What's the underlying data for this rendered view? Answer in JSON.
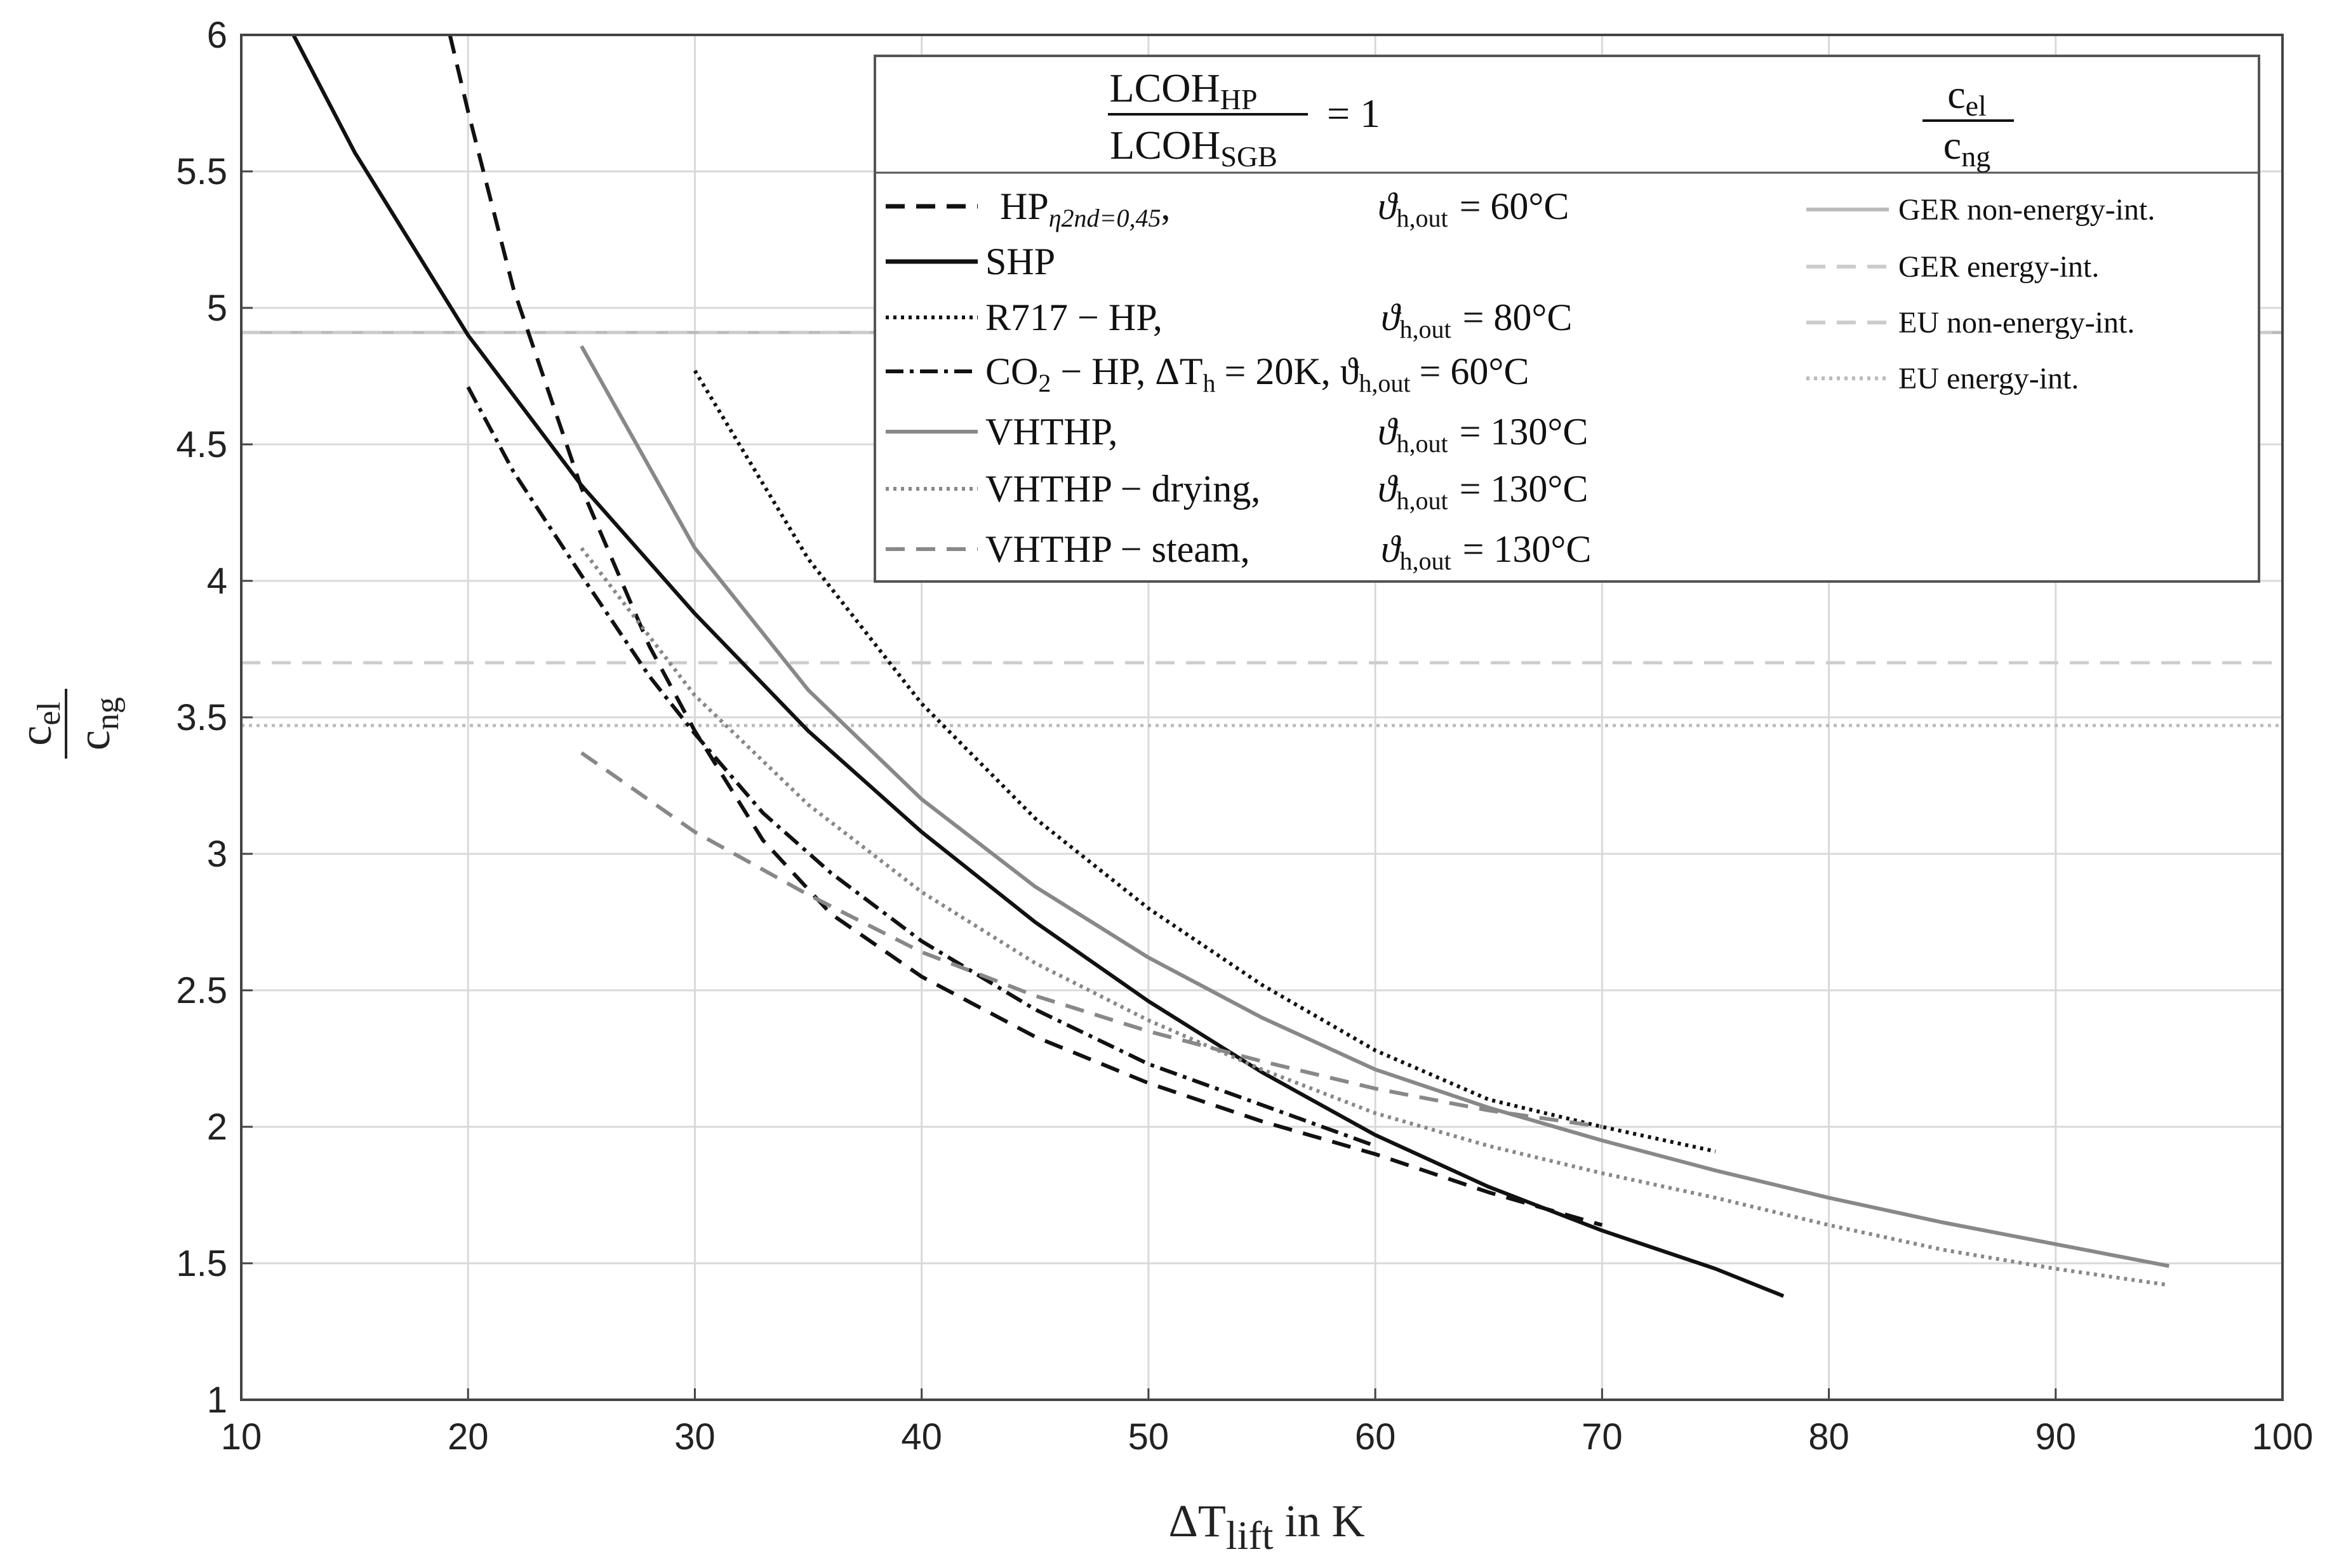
{
  "chart_data": {
    "type": "line",
    "xlabel": "ΔT",
    "xlabel_sub": "lift",
    "xlabel_suffix": " in K",
    "ylabel_num": "c",
    "ylabel_num_sub": "el",
    "ylabel_den": "c",
    "ylabel_den_sub": "ng",
    "xlim": [
      10,
      100
    ],
    "ylim": [
      1,
      6
    ],
    "xticks": [
      "10",
      "20",
      "30",
      "40",
      "50",
      "60",
      "70",
      "80",
      "90",
      "100"
    ],
    "yticks": [
      "1",
      "1.5",
      "2",
      "2.5",
      "3",
      "3.5",
      "4",
      "4.5",
      "5",
      "5.5",
      "6"
    ],
    "grid": true,
    "legend_position": "top-right",
    "legend_header": {
      "lcoh_num": "LCOH",
      "lcoh_num_sub": "HP",
      "lcoh_den": "LCOH",
      "lcoh_den_sub": "SGB",
      "lcoh_eq": "= 1",
      "ratio_num": "c",
      "ratio_num_sub": "el",
      "ratio_den": "c",
      "ratio_den_sub": "ng"
    },
    "series": [
      {
        "name": "HP",
        "name_sub": "η2nd=0,45",
        "name_tail": ",",
        "condition_a": "ϑ",
        "condition_a_sub": "h,out",
        "condition_b": "= 60°C",
        "color": "#111111",
        "dash": "dashed",
        "x": [
          19.2,
          20,
          22,
          25,
          28,
          30,
          33,
          36,
          40,
          45,
          50,
          55,
          60,
          65,
          70
        ],
        "y": [
          6.0,
          5.72,
          5.07,
          4.34,
          3.76,
          3.45,
          3.05,
          2.78,
          2.55,
          2.33,
          2.16,
          2.02,
          1.9,
          1.76,
          1.64
        ]
      },
      {
        "name": "SHP",
        "name_sub": "",
        "name_tail": "",
        "condition_a": "",
        "condition_a_sub": "",
        "condition_b": "",
        "color": "#111111",
        "dash": "solid",
        "x": [
          12.3,
          15,
          20,
          25,
          30,
          35,
          40,
          45,
          50,
          55,
          60,
          65,
          70,
          75,
          78
        ],
        "y": [
          6.0,
          5.57,
          4.9,
          4.35,
          3.88,
          3.45,
          3.08,
          2.75,
          2.46,
          2.2,
          1.97,
          1.78,
          1.62,
          1.48,
          1.38
        ]
      },
      {
        "name": "R717 − HP",
        "name_sub": "",
        "name_tail": ",",
        "condition_a": "ϑ",
        "condition_a_sub": "h,out",
        "condition_b": "= 80°C",
        "color": "#111111",
        "dash": "dotted",
        "x": [
          30,
          35,
          40,
          45,
          50,
          55,
          60,
          65,
          70,
          75
        ],
        "y": [
          4.77,
          4.08,
          3.55,
          3.13,
          2.8,
          2.52,
          2.28,
          2.1,
          2.0,
          1.91
        ]
      },
      {
        "name": "CO",
        "name_sub": "2",
        "name_tail": " − HP,  ΔT",
        "condition_a": "= 20K,  ϑ",
        "condition_a_sub": "h,out",
        "condition_b": "= 60°C",
        "cond_pre_sub": "h",
        "color": "#111111",
        "dash": "dashdot",
        "x": [
          20,
          22,
          25,
          28,
          30,
          33,
          36,
          40,
          45,
          50,
          55,
          60
        ],
        "y": [
          4.71,
          4.4,
          4.02,
          3.65,
          3.44,
          3.15,
          2.93,
          2.68,
          2.43,
          2.23,
          2.08,
          1.93
        ]
      },
      {
        "name": "VHTHP",
        "name_sub": "",
        "name_tail": ",",
        "condition_a": "ϑ",
        "condition_a_sub": "h,out",
        "condition_b": "= 130°C",
        "color": "#888888",
        "dash": "solid",
        "x": [
          25,
          30,
          35,
          40,
          45,
          50,
          55,
          60,
          65,
          70,
          75,
          80,
          85,
          90,
          95
        ],
        "y": [
          4.86,
          4.12,
          3.6,
          3.2,
          2.88,
          2.62,
          2.4,
          2.21,
          2.07,
          1.95,
          1.84,
          1.74,
          1.65,
          1.57,
          1.49
        ]
      },
      {
        "name": "VHTHP − drying",
        "name_sub": "",
        "name_tail": ",",
        "condition_a": "ϑ",
        "condition_a_sub": "h,out",
        "condition_b": "= 130°C",
        "color": "#888888",
        "dash": "dotted",
        "x": [
          25,
          30,
          35,
          40,
          45,
          50,
          55,
          60,
          65,
          70,
          75,
          80,
          85,
          90,
          95
        ],
        "y": [
          4.12,
          3.58,
          3.18,
          2.86,
          2.6,
          2.39,
          2.21,
          2.05,
          1.93,
          1.83,
          1.74,
          1.64,
          1.55,
          1.48,
          1.42
        ]
      },
      {
        "name": "VHTHP − steam",
        "name_sub": "",
        "name_tail": ",",
        "condition_a": "ϑ",
        "condition_a_sub": "h,out",
        "condition_b": "= 130°C",
        "color": "#888888",
        "dash": "dashed",
        "x": [
          25,
          30,
          35,
          40,
          45,
          50,
          55,
          60,
          65,
          70
        ],
        "y": [
          3.37,
          3.08,
          2.85,
          2.64,
          2.48,
          2.35,
          2.24,
          2.14,
          2.06,
          2.0
        ]
      }
    ],
    "reference_lines": [
      {
        "name": "GER non-energy-int.",
        "y": 4.91,
        "color": "#bbbbbb",
        "dash": "solid"
      },
      {
        "name": "GER energy-int.",
        "y": 3.7,
        "color": "#cccccc",
        "dash": "dashed"
      },
      {
        "name": "EU non-energy-int.",
        "y": 4.91,
        "color": "#cccccc",
        "dash": "dashed"
      },
      {
        "name": "EU energy-int.",
        "y": 3.47,
        "color": "#bbbbbb",
        "dash": "dotted"
      }
    ]
  }
}
